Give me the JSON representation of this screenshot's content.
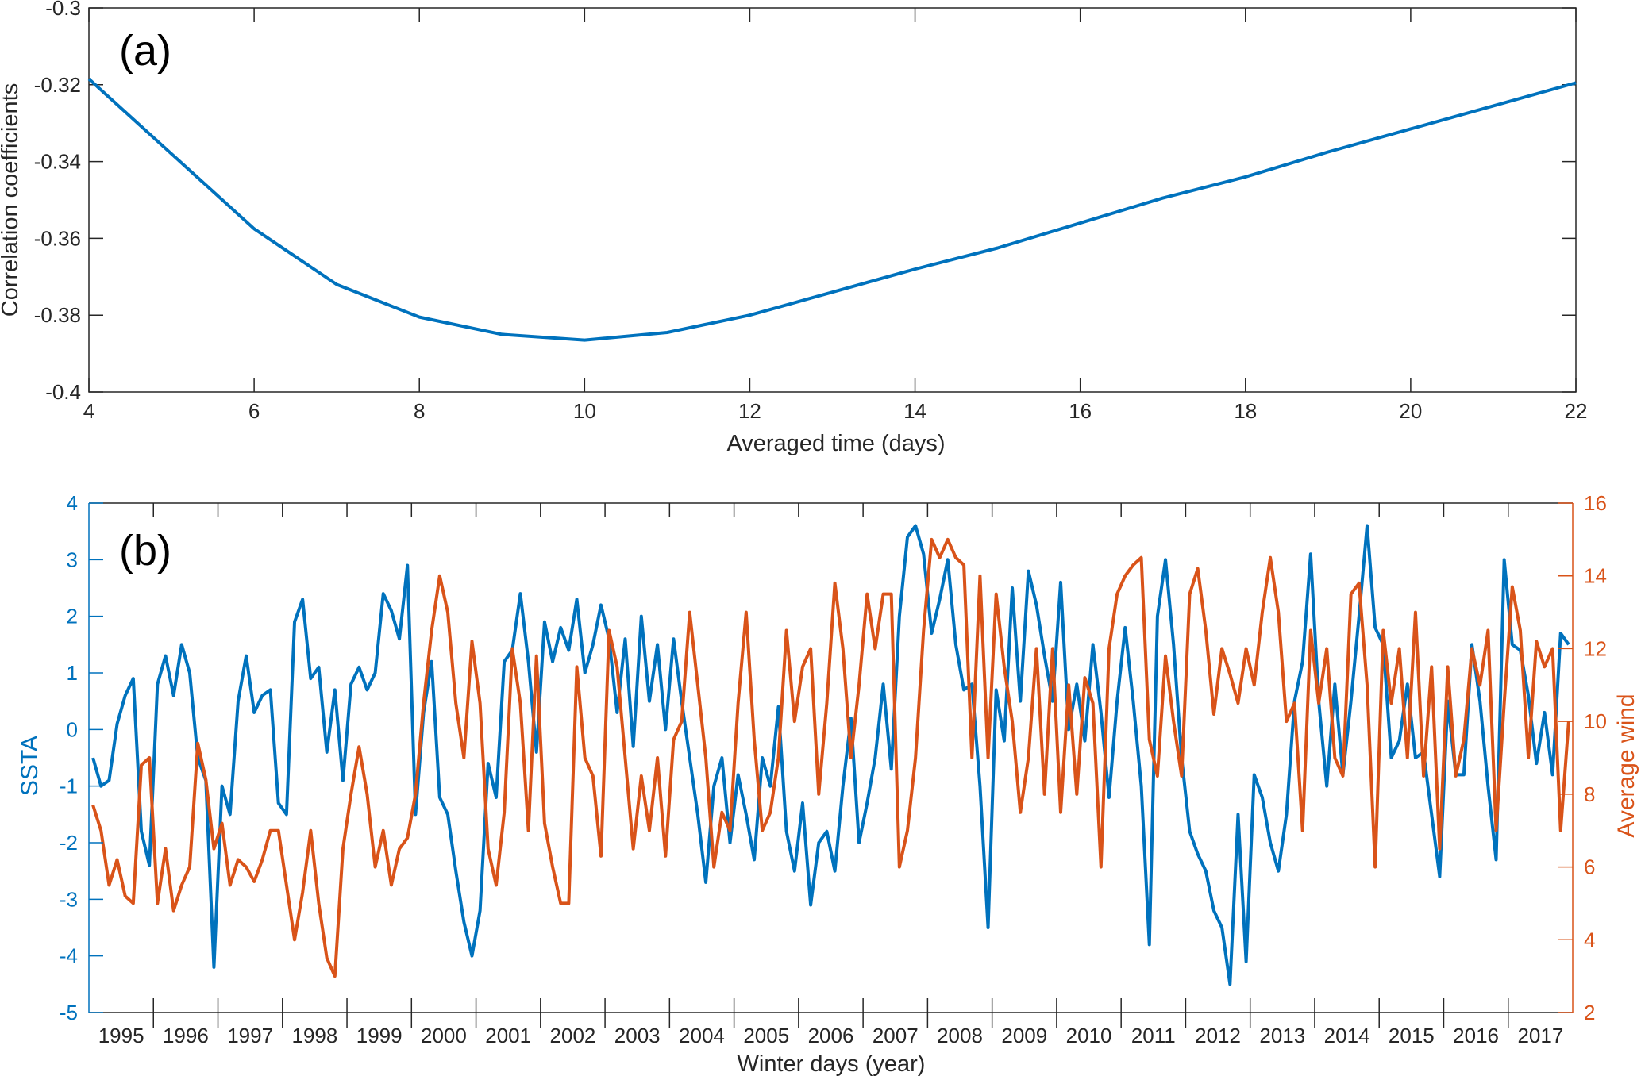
{
  "chart_data": [
    {
      "type": "line",
      "panel_label": "(a)",
      "xlabel": "Averaged time (days)",
      "ylabel": "Correlation  coefficients",
      "xlim": [
        4,
        22
      ],
      "ylim": [
        -0.4,
        -0.3
      ],
      "xticks": [
        4,
        6,
        8,
        10,
        12,
        14,
        16,
        18,
        20,
        22
      ],
      "yticks": [
        -0.4,
        -0.38,
        -0.36,
        -0.34,
        -0.32,
        -0.3
      ],
      "grid": false,
      "series": [
        {
          "color": "#0072BD",
          "x": [
            4,
            5,
            6,
            7,
            8,
            9,
            10,
            11,
            12,
            13,
            14,
            15,
            16,
            17,
            18,
            19,
            20,
            21,
            22
          ],
          "values": [
            -0.3185,
            -0.338,
            -0.3575,
            -0.372,
            -0.3805,
            -0.385,
            -0.3865,
            -0.3845,
            -0.38,
            -0.374,
            -0.368,
            -0.3625,
            -0.356,
            -0.3495,
            -0.344,
            -0.3375,
            -0.3315,
            -0.3255,
            -0.3195
          ]
        }
      ]
    },
    {
      "type": "line",
      "panel_label": "(b)",
      "xlabel": "Winter days  (year)",
      "ylabel_left": "SSTA",
      "ylabel_right": "Average wind",
      "xlim": [
        1995,
        2018
      ],
      "x_tick_labels": [
        "1995",
        "1996",
        "1997",
        "1998",
        "1999",
        "2000",
        "2001",
        "2002",
        "2003",
        "2004",
        "2005",
        "2006",
        "2007",
        "2008",
        "2009",
        "2010",
        "2011",
        "2012",
        "2013",
        "2014",
        "2015",
        "2016",
        "2017"
      ],
      "ylim_left": [
        -5,
        4
      ],
      "yticks_left": [
        -5,
        -4,
        -3,
        -2,
        -1,
        0,
        1,
        2,
        3,
        4
      ],
      "ylim_right": [
        2,
        16
      ],
      "yticks_right": [
        2,
        4,
        6,
        8,
        10,
        12,
        14,
        16
      ],
      "grid": false,
      "series": [
        {
          "axis": "left",
          "color": "#0072BD",
          "values": [
            -0.5,
            -1.0,
            -0.9,
            0.1,
            0.6,
            0.9,
            -1.8,
            -2.4,
            0.8,
            1.3,
            0.6,
            1.5,
            1.0,
            -0.5,
            -0.9,
            -4.2,
            -1.0,
            -1.5,
            0.5,
            1.3,
            0.3,
            0.6,
            0.7,
            -1.3,
            -1.5,
            1.9,
            2.3,
            0.9,
            1.1,
            -0.4,
            0.7,
            -0.9,
            0.8,
            1.1,
            0.7,
            1.0,
            2.4,
            2.1,
            1.6,
            2.9,
            -1.5,
            0.3,
            1.2,
            -1.2,
            -1.5,
            -2.5,
            -3.4,
            -4.0,
            -3.2,
            -0.6,
            -1.2,
            1.2,
            1.4,
            2.4,
            1.2,
            -0.4,
            1.9,
            1.2,
            1.8,
            1.4,
            2.3,
            1.0,
            1.5,
            2.2,
            1.6,
            0.3,
            1.6,
            -0.3,
            2.0,
            0.5,
            1.5,
            0.0,
            1.6,
            0.5,
            -0.5,
            -1.5,
            -2.7,
            -1.0,
            -0.5,
            -2.0,
            -0.8,
            -1.5,
            -2.3,
            -0.5,
            -1.0,
            0.4,
            -1.8,
            -2.5,
            -1.3,
            -3.1,
            -2.0,
            -1.8,
            -2.5,
            -1.0,
            0.2,
            -2.0,
            -1.3,
            -0.5,
            0.8,
            -0.7,
            2.0,
            3.4,
            3.6,
            3.1,
            1.7,
            2.3,
            3.0,
            1.5,
            0.7,
            0.8,
            -1.0,
            -3.5,
            0.7,
            -0.2,
            2.5,
            0.5,
            2.8,
            2.2,
            1.3,
            0.5,
            2.6,
            0.0,
            0.8,
            -0.2,
            1.5,
            0.3,
            -1.2,
            0.5,
            1.8,
            0.5,
            -1.0,
            -3.8,
            2.0,
            3.0,
            1.5,
            -0.5,
            -1.8,
            -2.2,
            -2.5,
            -3.2,
            -3.5,
            -4.5,
            -1.5,
            -4.1,
            -0.8,
            -1.2,
            -2.0,
            -2.5,
            -1.5,
            0.5,
            1.2,
            3.1,
            0.5,
            -1.0,
            0.8,
            -0.8,
            0.5,
            2.0,
            3.6,
            1.8,
            1.5,
            -0.5,
            -0.2,
            0.8,
            -0.5,
            -0.4,
            -1.5,
            -2.6,
            0.5,
            -0.8,
            -0.8,
            1.5,
            0.5,
            -1.0,
            -2.3,
            3.0,
            1.5,
            1.4,
            0.6,
            -0.6,
            0.3,
            -0.8,
            1.7,
            1.5
          ]
        },
        {
          "axis": "right",
          "color": "#D95319",
          "values": [
            7.7,
            7.0,
            5.5,
            6.2,
            5.2,
            5.0,
            8.8,
            9.0,
            5.0,
            6.5,
            4.8,
            5.5,
            6.0,
            9.4,
            8.4,
            6.5,
            7.2,
            5.5,
            6.2,
            6.0,
            5.6,
            6.2,
            7.0,
            7.0,
            5.5,
            4.0,
            5.3,
            7.0,
            5.0,
            3.5,
            3.0,
            6.5,
            8.0,
            9.3,
            8.0,
            6.0,
            7.0,
            5.5,
            6.5,
            6.8,
            8.0,
            10.5,
            12.5,
            14.0,
            13.0,
            10.5,
            9.0,
            12.2,
            10.5,
            6.5,
            5.5,
            7.5,
            12.0,
            10.5,
            7.0,
            11.8,
            7.2,
            6.0,
            5.0,
            5.0,
            11.5,
            9.0,
            8.5,
            6.3,
            12.5,
            11.5,
            9.0,
            6.5,
            8.5,
            7.0,
            9.0,
            6.3,
            9.5,
            10.0,
            13.0,
            11.0,
            9.0,
            6.0,
            7.5,
            7.0,
            10.5,
            13.0,
            9.5,
            7.0,
            7.5,
            9.0,
            12.5,
            10.0,
            11.5,
            12.0,
            8.0,
            10.5,
            13.8,
            12.0,
            9.0,
            11.0,
            13.5,
            12.0,
            13.5,
            13.5,
            6.0,
            7.0,
            9.0,
            12.5,
            15.0,
            14.5,
            15.0,
            14.5,
            14.3,
            9.0,
            14.0,
            9.0,
            13.5,
            11.5,
            10.0,
            7.5,
            9.0,
            12.0,
            8.0,
            12.0,
            7.5,
            11.0,
            8.0,
            11.2,
            10.5,
            6.0,
            12.0,
            13.5,
            14.0,
            14.3,
            14.5,
            9.5,
            8.5,
            11.8,
            10.0,
            8.5,
            13.5,
            14.2,
            12.5,
            10.2,
            12.0,
            11.3,
            10.5,
            12.0,
            11.0,
            13.0,
            14.5,
            13.0,
            10.0,
            10.5,
            7.0,
            12.5,
            10.5,
            12.0,
            9.0,
            8.5,
            13.5,
            13.8,
            11.0,
            6.0,
            12.5,
            10.5,
            12.0,
            9.0,
            13.0,
            8.5,
            11.5,
            6.5,
            11.5,
            8.5,
            9.5,
            12.0,
            11.0,
            12.5,
            7.0,
            10.5,
            13.7,
            12.5,
            9.0,
            12.2,
            11.5,
            12.0,
            7.0,
            10.0
          ]
        }
      ]
    }
  ]
}
